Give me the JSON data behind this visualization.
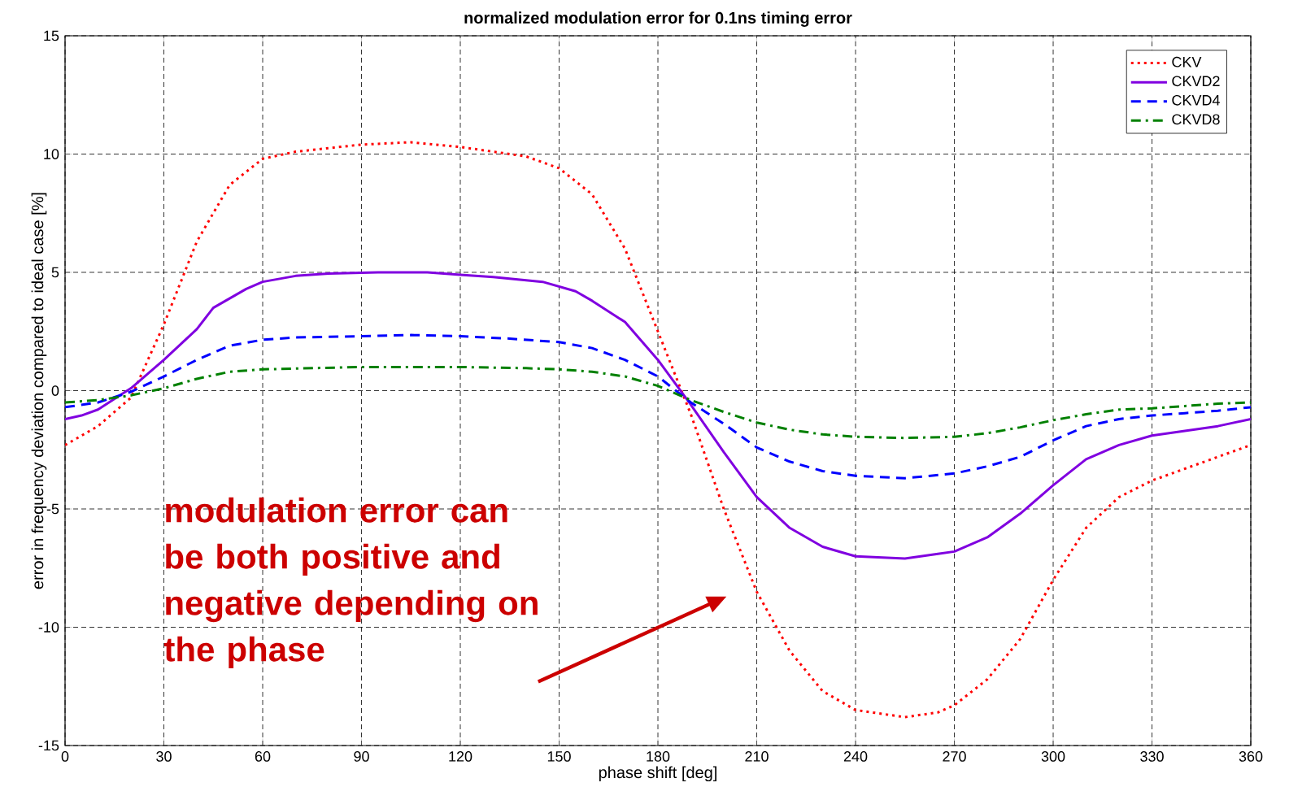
{
  "chart_data": {
    "type": "line",
    "title": "normalized modulation error for 0.1ns timing error",
    "xlabel": "phase shift [deg]",
    "ylabel": "error in frequency deviation compared to ideal case  [%]",
    "xlim": [
      0,
      360
    ],
    "ylim": [
      -15,
      15
    ],
    "xticks": [
      0,
      30,
      60,
      90,
      120,
      150,
      180,
      210,
      240,
      270,
      300,
      330,
      360
    ],
    "yticks": [
      -15,
      -10,
      -5,
      0,
      5,
      10,
      15
    ],
    "grid": true,
    "legend": "top right",
    "annotations": [
      "modulation error can be both positive and negative depending on the phase"
    ],
    "series": [
      {
        "name": "CKV",
        "color": "#ff0000",
        "line_style": "dotted",
        "x": [
          0,
          10,
          20,
          30,
          40,
          50,
          60,
          70,
          90,
          105,
          120,
          140,
          150,
          160,
          170,
          180,
          190,
          200,
          210,
          220,
          230,
          240,
          255,
          265,
          270,
          280,
          290,
          300,
          310,
          320,
          330,
          340,
          350,
          360
        ],
        "values": [
          -2.3,
          -1.5,
          -0.3,
          2.8,
          6.3,
          8.7,
          9.8,
          10.1,
          10.4,
          10.5,
          10.3,
          9.9,
          9.4,
          8.3,
          6.0,
          2.5,
          -1.0,
          -5.0,
          -8.5,
          -11.0,
          -12.7,
          -13.5,
          -13.8,
          -13.6,
          -13.3,
          -12.2,
          -10.5,
          -8.0,
          -5.8,
          -4.5,
          -3.8,
          -3.3,
          -2.8,
          -2.3
        ]
      },
      {
        "name": "CKVD2",
        "color": "#8000e0",
        "line_style": "solid",
        "x": [
          0,
          5,
          10,
          20,
          30,
          40,
          45,
          55,
          60,
          70,
          80,
          95,
          110,
          120,
          130,
          145,
          155,
          160,
          170,
          180,
          190,
          200,
          210,
          220,
          230,
          240,
          255,
          265,
          270,
          280,
          290,
          300,
          310,
          320,
          330,
          340,
          350,
          360
        ],
        "values": [
          -1.2,
          -1.05,
          -0.8,
          0.1,
          1.3,
          2.6,
          3.5,
          4.3,
          4.6,
          4.85,
          4.95,
          5.0,
          5.0,
          4.9,
          4.8,
          4.6,
          4.2,
          3.8,
          2.9,
          1.3,
          -0.6,
          -2.6,
          -4.5,
          -5.8,
          -6.6,
          -7.0,
          -7.1,
          -6.9,
          -6.8,
          -6.2,
          -5.2,
          -4.0,
          -2.9,
          -2.3,
          -1.9,
          -1.7,
          -1.5,
          -1.2
        ]
      },
      {
        "name": "CKVD4",
        "color": "#0000ff",
        "line_style": "dashed",
        "x": [
          0,
          10,
          20,
          30,
          40,
          50,
          60,
          70,
          90,
          105,
          120,
          135,
          150,
          160,
          170,
          180,
          190,
          200,
          210,
          220,
          230,
          240,
          255,
          270,
          280,
          290,
          300,
          310,
          320,
          330,
          340,
          350,
          360
        ],
        "values": [
          -0.7,
          -0.5,
          -0.05,
          0.6,
          1.3,
          1.9,
          2.15,
          2.25,
          2.3,
          2.35,
          2.3,
          2.2,
          2.05,
          1.8,
          1.3,
          0.6,
          -0.5,
          -1.4,
          -2.4,
          -3.0,
          -3.4,
          -3.6,
          -3.7,
          -3.5,
          -3.2,
          -2.8,
          -2.1,
          -1.5,
          -1.2,
          -1.05,
          -0.95,
          -0.85,
          -0.7
        ]
      },
      {
        "name": "CKVD8",
        "color": "#008000",
        "line_style": "dashdot",
        "x": [
          0,
          10,
          20,
          30,
          40,
          50,
          60,
          75,
          90,
          120,
          140,
          150,
          160,
          170,
          180,
          190,
          200,
          210,
          220,
          230,
          240,
          255,
          270,
          280,
          290,
          300,
          310,
          320,
          330,
          340,
          350,
          360
        ],
        "values": [
          -0.5,
          -0.4,
          -0.2,
          0.1,
          0.5,
          0.8,
          0.9,
          0.95,
          1.0,
          1.0,
          0.95,
          0.9,
          0.8,
          0.6,
          0.2,
          -0.4,
          -0.9,
          -1.35,
          -1.65,
          -1.85,
          -1.95,
          -2.0,
          -1.95,
          -1.8,
          -1.55,
          -1.25,
          -1.0,
          -0.8,
          -0.75,
          -0.65,
          -0.55,
          -0.5
        ]
      }
    ]
  }
}
